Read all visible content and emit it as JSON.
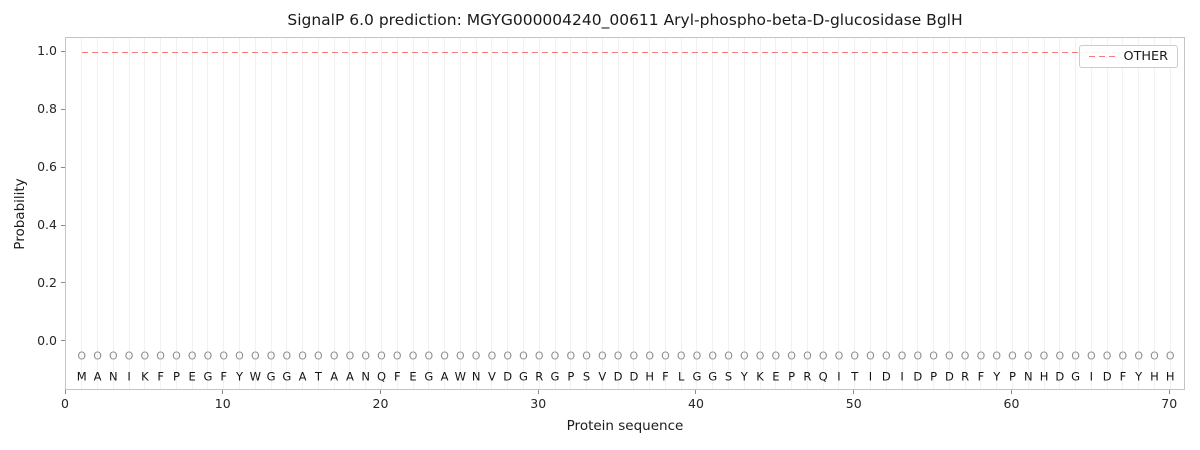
{
  "chart_data": {
    "type": "line",
    "title": "SignalP 6.0 prediction: MGYG000004240_00611 Aryl-phospho-beta-D-glucosidase BglH",
    "xlabel": "Protein sequence",
    "ylabel": "Probability",
    "xlim": [
      0,
      71
    ],
    "ylim": [
      -0.17,
      1.05
    ],
    "xticks": [
      0,
      10,
      20,
      30,
      40,
      50,
      60,
      70
    ],
    "yticks": [
      0.0,
      0.2,
      0.4,
      0.6,
      0.8,
      1.0
    ],
    "grid": "vertical line at every residue position",
    "legend_position": "upper right",
    "series": [
      {
        "name": "OTHER",
        "color": "#f37b7b",
        "line_style": "dashed",
        "x": {
          "from": 1,
          "to": 70,
          "step": 1
        },
        "y_constant": 1.0
      }
    ],
    "sequence": "MANIKFPEGFYWGGATAANQFEGAWNVDGRGPSVDDHFLGGSYKEPRQITIDIDPDRFYPNHDGIDFYHH",
    "per_position_label": "O",
    "per_position_label_y": -0.05,
    "sequence_letter_y": -0.12,
    "marker_color": "#8f8f8f"
  }
}
